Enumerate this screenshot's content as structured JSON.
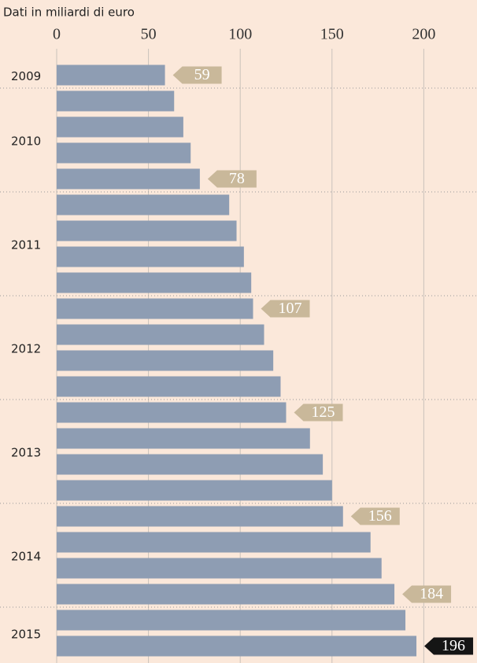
{
  "chart_data": {
    "type": "barh",
    "title": "Dati in miliardi di euro",
    "categories": [
      "2009",
      "2010",
      null,
      null,
      null,
      "2011",
      null,
      null,
      null,
      "2012",
      null,
      null,
      null,
      "2013",
      null,
      null,
      null,
      "2014",
      null,
      null,
      null,
      "2015",
      null
    ],
    "values": [
      59,
      64,
      69,
      73,
      78,
      94,
      98,
      102,
      106,
      107,
      113,
      118,
      122,
      125,
      138,
      145,
      150,
      156,
      171,
      177,
      184,
      190,
      196
    ],
    "value_labels": [
      "59",
      null,
      null,
      null,
      "78",
      null,
      null,
      null,
      null,
      "107",
      null,
      null,
      null,
      "125",
      null,
      null,
      null,
      "156",
      null,
      null,
      "184",
      null,
      "196"
    ],
    "color": "#8e9db3",
    "label_color": "#c9b89a",
    "highlight_label_color": "#151515",
    "highlight_last": true,
    "xlim": [
      0,
      229
    ],
    "xticks": [
      0,
      50,
      100,
      150,
      200
    ],
    "grid": true
  }
}
